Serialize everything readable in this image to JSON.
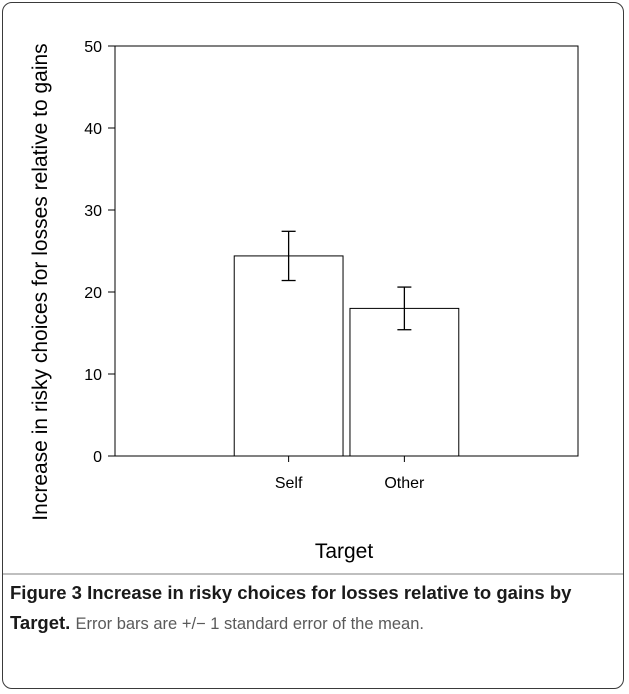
{
  "chart_data": {
    "type": "bar",
    "categories": [
      "Self",
      "Other"
    ],
    "values": [
      24.4,
      18.0
    ],
    "error": [
      3.0,
      2.6
    ],
    "ylim": [
      0,
      50
    ],
    "yticks": [
      0,
      10,
      20,
      30,
      40,
      50
    ],
    "xlabel": "Target",
    "ylabel": "Increase in risky choices for losses relative to gains",
    "grid": false
  },
  "caption": {
    "label": "Figure 3",
    "title": "Increase in risky choices for losses relative to gains by Target.",
    "note": "Error bars are +/− 1 standard error of the mean."
  }
}
